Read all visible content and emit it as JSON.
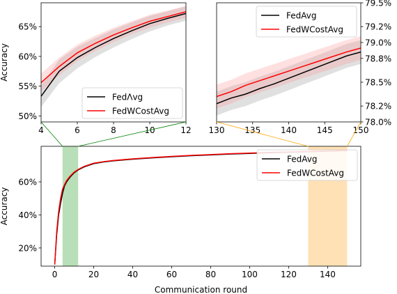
{
  "colors": {
    "fedavg": "#000000",
    "fedwcostavg": "#ff0000",
    "fedavg_band": "#999999",
    "fedwcostavg_band": "#ff9999",
    "zoom_early": "#4daf4a",
    "zoom_late": "#ffb347",
    "connector_early": "#008000",
    "connector_late": "#ffa500"
  },
  "chart_data": [
    {
      "type": "line",
      "panel": "zoom-early",
      "xlim": [
        4,
        12
      ],
      "ylim": [
        0.49,
        0.69
      ],
      "xticks": [
        "4",
        "6",
        "8",
        "10",
        "12"
      ],
      "yticks": [
        "50%",
        "55%",
        "60%",
        "65%"
      ],
      "ylabel": "Accuracy",
      "legend_position": "lower-right",
      "series": [
        {
          "name": "FedΛvg",
          "x": [
            4,
            5,
            6,
            7,
            8,
            9,
            10,
            11,
            12
          ],
          "y": [
            0.533,
            0.575,
            0.598,
            0.615,
            0.63,
            0.643,
            0.655,
            0.664,
            0.672
          ],
          "band": [
            0.018,
            0.02,
            0.018,
            0.016,
            0.015,
            0.014,
            0.013,
            0.012,
            0.012
          ]
        },
        {
          "name": "FedWCostAvg",
          "x": [
            4,
            5,
            6,
            7,
            8,
            9,
            10,
            11,
            12
          ],
          "y": [
            0.556,
            0.583,
            0.606,
            0.622,
            0.636,
            0.648,
            0.659,
            0.667,
            0.675
          ],
          "band": [
            0.015,
            0.015,
            0.014,
            0.013,
            0.012,
            0.011,
            0.011,
            0.01,
            0.01
          ]
        }
      ]
    },
    {
      "type": "line",
      "panel": "zoom-late",
      "xlim": [
        130,
        150
      ],
      "ylim": [
        0.78,
        0.795
      ],
      "xticks": [
        "130",
        "135",
        "140",
        "145",
        "150"
      ],
      "yticks": [
        "78.0%",
        "78.2%",
        "78.5%",
        "78.8%",
        "79.0%",
        "79.2%",
        "79.5%"
      ],
      "legend_position": "top-left",
      "series": [
        {
          "name": "FedAvg",
          "x": [
            130,
            132,
            134,
            136,
            138,
            140,
            142,
            144,
            146,
            148,
            150
          ],
          "y": [
            0.7823,
            0.783,
            0.7835,
            0.7842,
            0.7848,
            0.7855,
            0.7862,
            0.7869,
            0.7876,
            0.7883,
            0.7888
          ],
          "band": [
            0.0015,
            0.0015,
            0.0015,
            0.0015,
            0.0015,
            0.0015,
            0.0015,
            0.0015,
            0.0015,
            0.0015,
            0.0015
          ]
        },
        {
          "name": "FedWCostAvg",
          "x": [
            130,
            132,
            134,
            136,
            138,
            140,
            142,
            144,
            146,
            148,
            150
          ],
          "y": [
            0.7832,
            0.7838,
            0.7846,
            0.7852,
            0.7858,
            0.7864,
            0.787,
            0.7876,
            0.7882,
            0.7888,
            0.7893
          ],
          "band": [
            0.0015,
            0.0015,
            0.0015,
            0.0015,
            0.0015,
            0.0015,
            0.0015,
            0.0015,
            0.0015,
            0.0015,
            0.0015
          ]
        }
      ]
    },
    {
      "type": "line",
      "panel": "full",
      "xlim": [
        -7,
        157
      ],
      "ylim": [
        0.09,
        0.815
      ],
      "xticks": [
        "0",
        "20",
        "40",
        "60",
        "80",
        "100",
        "120",
        "140"
      ],
      "yticks": [
        "20%",
        "40%",
        "60%"
      ],
      "xlabel": "Communication round",
      "ylabel": "Accuracy",
      "legend_position": "top-right",
      "highlight_ranges": [
        [
          4,
          12
        ],
        [
          130,
          150
        ]
      ],
      "series": [
        {
          "name": "FedAvg",
          "x": [
            0,
            1,
            2,
            3,
            4,
            5,
            6,
            7,
            8,
            9,
            10,
            12,
            15,
            20,
            25,
            30,
            40,
            50,
            60,
            70,
            80,
            90,
            100,
            110,
            120,
            130,
            140,
            150
          ],
          "y": [
            0.1,
            0.28,
            0.4,
            0.47,
            0.53,
            0.575,
            0.598,
            0.615,
            0.63,
            0.643,
            0.655,
            0.672,
            0.69,
            0.71,
            0.72,
            0.727,
            0.737,
            0.745,
            0.752,
            0.758,
            0.763,
            0.768,
            0.772,
            0.776,
            0.779,
            0.782,
            0.786,
            0.789
          ]
        },
        {
          "name": "FedWCostAvg",
          "x": [
            0,
            1,
            2,
            3,
            4,
            5,
            6,
            7,
            8,
            9,
            10,
            12,
            15,
            20,
            25,
            30,
            40,
            50,
            60,
            70,
            80,
            90,
            100,
            110,
            120,
            130,
            140,
            150
          ],
          "y": [
            0.1,
            0.3,
            0.42,
            0.5,
            0.556,
            0.583,
            0.606,
            0.622,
            0.636,
            0.648,
            0.659,
            0.675,
            0.693,
            0.713,
            0.722,
            0.729,
            0.739,
            0.747,
            0.754,
            0.76,
            0.765,
            0.77,
            0.774,
            0.778,
            0.781,
            0.783,
            0.787,
            0.789
          ]
        }
      ]
    }
  ]
}
